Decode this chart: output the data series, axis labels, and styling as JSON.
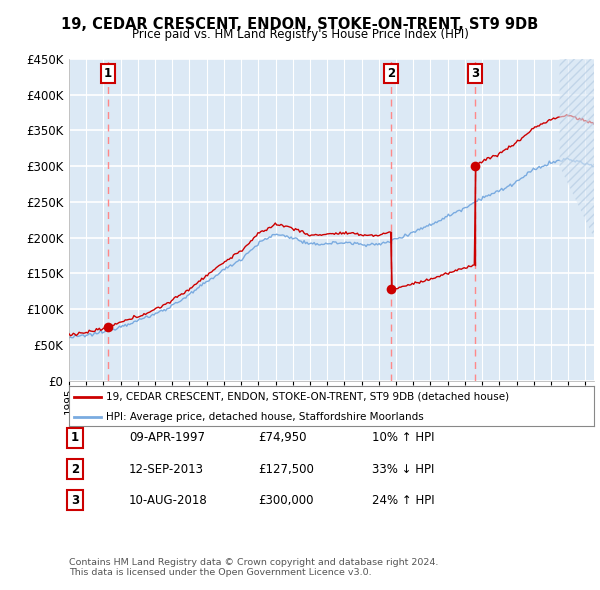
{
  "title": "19, CEDAR CRESCENT, ENDON, STOKE-ON-TRENT, ST9 9DB",
  "subtitle": "Price paid vs. HM Land Registry's House Price Index (HPI)",
  "background_color": "#dce9f5",
  "plot_bg_color": "#dce9f5",
  "ylim": [
    0,
    450000
  ],
  "yticks": [
    0,
    50000,
    100000,
    150000,
    200000,
    250000,
    300000,
    350000,
    400000,
    450000
  ],
  "xlim_start": 1995.0,
  "xlim_end": 2025.5,
  "sale_dates": [
    1997.27,
    2013.71,
    2018.6
  ],
  "sale_prices": [
    74950,
    127500,
    300000
  ],
  "sale_labels": [
    "1",
    "2",
    "3"
  ],
  "legend_entry1": "19, CEDAR CRESCENT, ENDON, STOKE-ON-TRENT, ST9 9DB (detached house)",
  "legend_entry2": "HPI: Average price, detached house, Staffordshire Moorlands",
  "table_rows": [
    [
      "1",
      "09-APR-1997",
      "£74,950",
      "10% ↑ HPI"
    ],
    [
      "2",
      "12-SEP-2013",
      "£127,500",
      "33% ↓ HPI"
    ],
    [
      "3",
      "10-AUG-2018",
      "£300,000",
      "24% ↑ HPI"
    ]
  ],
  "footer": "Contains HM Land Registry data © Crown copyright and database right 2024.\nThis data is licensed under the Open Government Licence v3.0.",
  "red_color": "#cc0000",
  "blue_color": "#7aabe0",
  "dashed_color": "#ff8888",
  "hpi_control_x": [
    1995.0,
    1996,
    1997,
    1998,
    1999,
    2000,
    2001,
    2002,
    2003,
    2004,
    2005,
    2006,
    2007,
    2008,
    2009,
    2010,
    2011,
    2012,
    2013,
    2014,
    2015,
    2016,
    2017,
    2018,
    2019,
    2020,
    2021,
    2022,
    2023,
    2024,
    2025.5
  ],
  "hpi_control_y": [
    60000,
    63000,
    68000,
    76000,
    84000,
    93000,
    105000,
    120000,
    138000,
    155000,
    170000,
    192000,
    205000,
    200000,
    190000,
    192000,
    193000,
    191000,
    190000,
    198000,
    208000,
    218000,
    230000,
    242000,
    256000,
    265000,
    278000,
    295000,
    305000,
    310000,
    300000
  ]
}
